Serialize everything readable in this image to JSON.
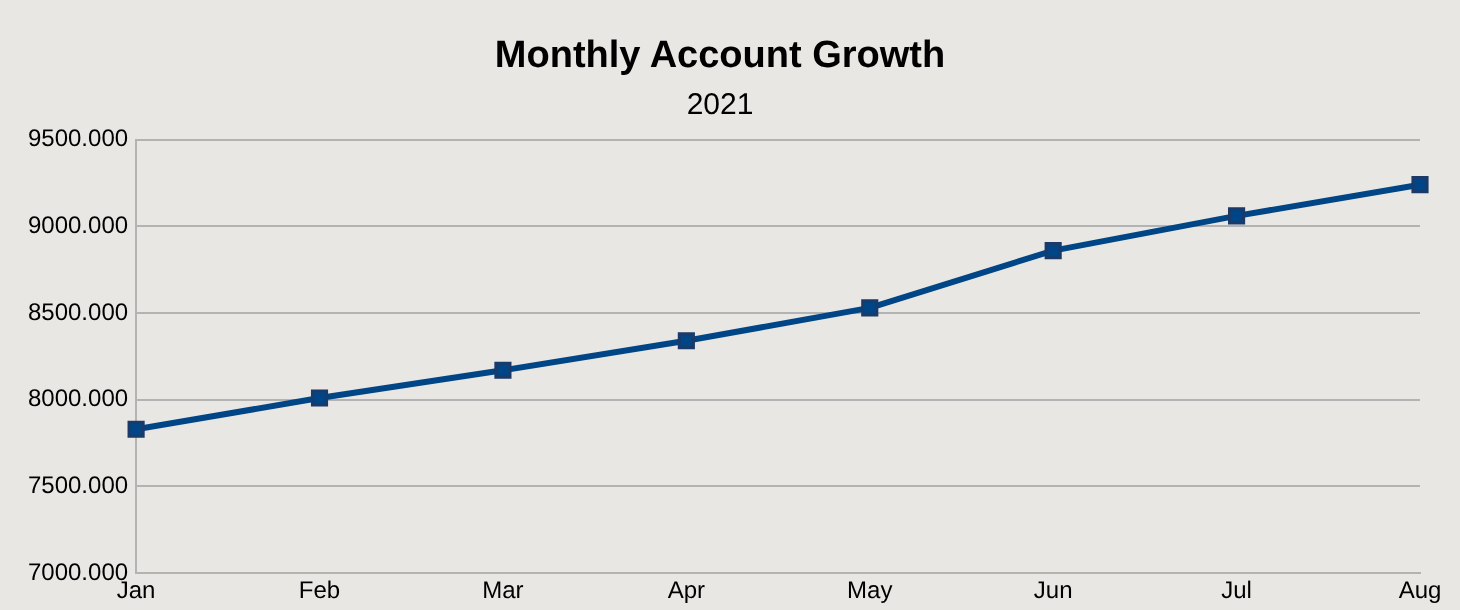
{
  "chart_data": {
    "type": "line",
    "title": "Monthly Account Growth",
    "subtitle": "2021",
    "categories": [
      "Jan",
      "Feb",
      "Mar",
      "Apr",
      "May",
      "Jun",
      "Jul",
      "Aug"
    ],
    "series": [
      {
        "color": "#004586",
        "values": [
          7830,
          8010,
          8170,
          8340,
          8530,
          8860,
          9060,
          9240
        ]
      }
    ],
    "ylim": [
      7000,
      9500
    ],
    "yticks": [
      {
        "value": 7000,
        "label": "7000.000"
      },
      {
        "value": 7500,
        "label": "7500.000"
      },
      {
        "value": 8000,
        "label": "8000.000"
      },
      {
        "value": 8500,
        "label": "8500.000"
      },
      {
        "value": 9000,
        "label": "9000.000"
      },
      {
        "value": 9500,
        "label": "9500.000"
      }
    ],
    "grid": "y",
    "marker": "square",
    "line_style": "solid",
    "legend": false
  }
}
